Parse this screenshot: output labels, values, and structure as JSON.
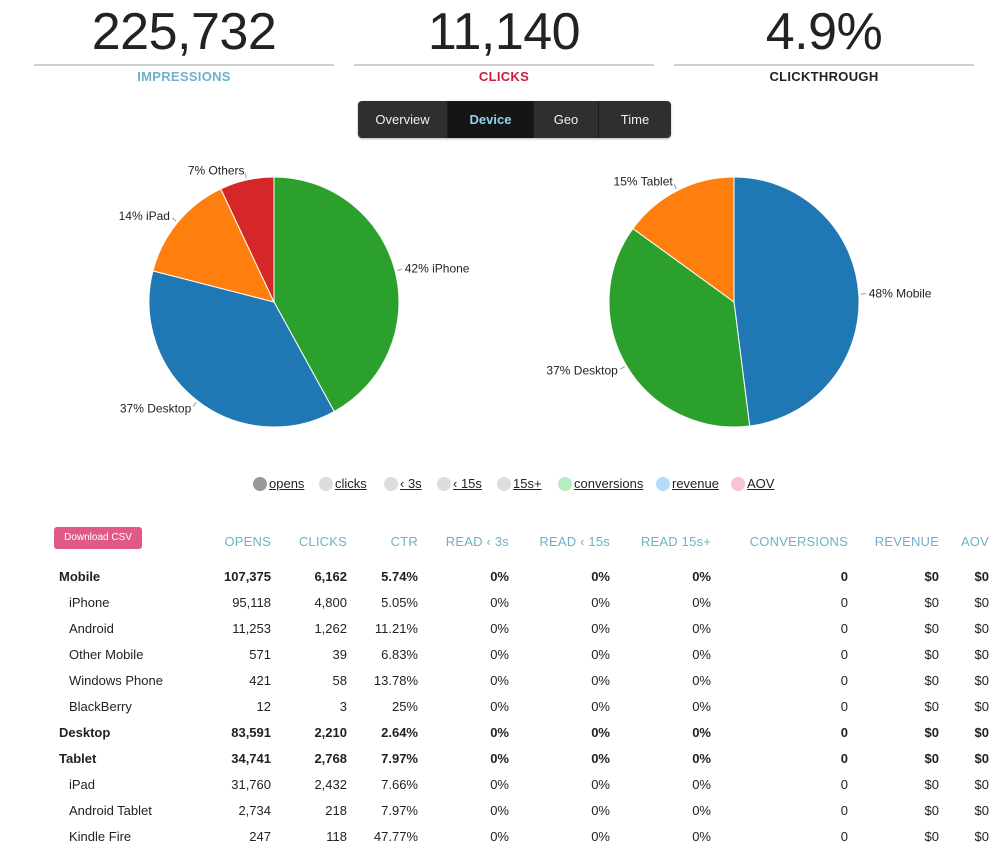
{
  "stats": {
    "impressions": {
      "value": "225,732",
      "label": "IMPRESSIONS",
      "color": "#6fb0c9"
    },
    "clicks": {
      "value": "11,140",
      "label": "CLICKS",
      "color": "#cc1d3c"
    },
    "clickthrough": {
      "value": "4.9%",
      "label": "CLICKTHROUGH",
      "color": "#222222"
    }
  },
  "tabs": [
    {
      "label": "Overview",
      "active": false
    },
    {
      "label": "Device",
      "active": true
    },
    {
      "label": "Geo",
      "active": false
    },
    {
      "label": "Time",
      "active": false
    }
  ],
  "chart_data": [
    {
      "type": "pie",
      "slices": [
        {
          "label": "42% iPhone",
          "value": 42,
          "color": "#2ca02c"
        },
        {
          "label": "37% Desktop",
          "value": 37,
          "color": "#1f77b4"
        },
        {
          "label": "14% iPad",
          "value": 14,
          "color": "#ff7f0e"
        },
        {
          "label": "7% Others",
          "value": 7,
          "color": "#d62728"
        }
      ]
    },
    {
      "type": "pie",
      "slices": [
        {
          "label": "48% Mobile",
          "value": 48,
          "color": "#1f77b4"
        },
        {
          "label": "37% Desktop",
          "value": 37,
          "color": "#2ca02c"
        },
        {
          "label": "15% Tablet",
          "value": 15,
          "color": "#ff7f0e"
        }
      ]
    }
  ],
  "legend": [
    {
      "label": "opens",
      "color": "#999999"
    },
    {
      "label": "clicks",
      "color": "#dddddd"
    },
    {
      "label": "‹ 3s",
      "color": "#dddddd"
    },
    {
      "label": "‹ 15s",
      "color": "#dddddd"
    },
    {
      "label": "15s+",
      "color": "#dddddd"
    },
    {
      "label": "conversions",
      "color": "#b7ecc0"
    },
    {
      "label": "revenue",
      "color": "#b5dcf7"
    },
    {
      "label": "AOV",
      "color": "#fbc1d4"
    }
  ],
  "table": {
    "download_label": "Download CSV",
    "headers": [
      "OPENS",
      "CLICKS",
      "CTR",
      "READ ‹ 3s",
      "READ ‹ 15s",
      "READ 15s+",
      "CONVERSIONS",
      "REVENUE",
      "AOV"
    ],
    "rows": [
      {
        "name": "Mobile",
        "bold": true,
        "cells": [
          "107,375",
          "6,162",
          "5.74%",
          "0%",
          "0%",
          "0%",
          "0",
          "$0",
          "$0"
        ]
      },
      {
        "name": "iPhone",
        "bold": false,
        "cells": [
          "95,118",
          "4,800",
          "5.05%",
          "0%",
          "0%",
          "0%",
          "0",
          "$0",
          "$0"
        ]
      },
      {
        "name": "Android",
        "bold": false,
        "cells": [
          "11,253",
          "1,262",
          "11.21%",
          "0%",
          "0%",
          "0%",
          "0",
          "$0",
          "$0"
        ]
      },
      {
        "name": "Other Mobile",
        "bold": false,
        "cells": [
          "571",
          "39",
          "6.83%",
          "0%",
          "0%",
          "0%",
          "0",
          "$0",
          "$0"
        ]
      },
      {
        "name": "Windows Phone",
        "bold": false,
        "cells": [
          "421",
          "58",
          "13.78%",
          "0%",
          "0%",
          "0%",
          "0",
          "$0",
          "$0"
        ]
      },
      {
        "name": "BlackBerry",
        "bold": false,
        "cells": [
          "12",
          "3",
          "25%",
          "0%",
          "0%",
          "0%",
          "0",
          "$0",
          "$0"
        ]
      },
      {
        "name": "Desktop",
        "bold": true,
        "cells": [
          "83,591",
          "2,210",
          "2.64%",
          "0%",
          "0%",
          "0%",
          "0",
          "$0",
          "$0"
        ]
      },
      {
        "name": "Tablet",
        "bold": true,
        "cells": [
          "34,741",
          "2,768",
          "7.97%",
          "0%",
          "0%",
          "0%",
          "0",
          "$0",
          "$0"
        ]
      },
      {
        "name": "iPad",
        "bold": false,
        "cells": [
          "31,760",
          "2,432",
          "7.66%",
          "0%",
          "0%",
          "0%",
          "0",
          "$0",
          "$0"
        ]
      },
      {
        "name": "Android Tablet",
        "bold": false,
        "cells": [
          "2,734",
          "218",
          "7.97%",
          "0%",
          "0%",
          "0%",
          "0",
          "$0",
          "$0"
        ]
      },
      {
        "name": "Kindle Fire",
        "bold": false,
        "cells": [
          "247",
          "118",
          "47.77%",
          "0%",
          "0%",
          "0%",
          "0",
          "$0",
          "$0"
        ]
      }
    ]
  }
}
